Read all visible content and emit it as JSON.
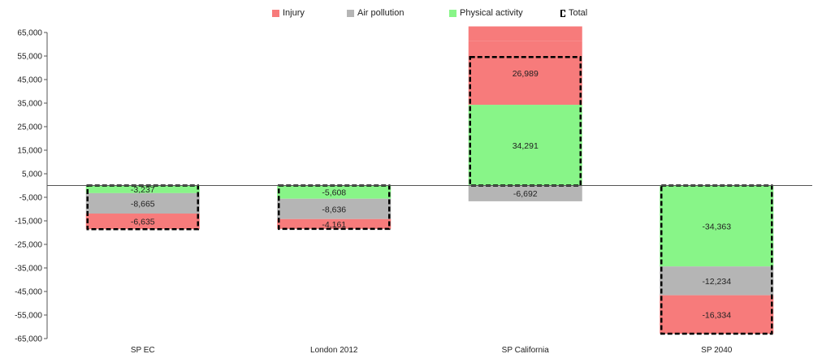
{
  "chart_data": {
    "type": "bar",
    "stacked": true,
    "categories": [
      "SP EC",
      "London 2012",
      "SP California",
      "SP 2040"
    ],
    "series": [
      {
        "name": "Physical activity",
        "color": "#88f588",
        "values": [
          -3237,
          -5608,
          34291,
          -34363
        ],
        "labels": [
          "-3,237",
          "-5,608",
          "34,291",
          "-34,363"
        ]
      },
      {
        "name": "Air pollution",
        "color": "#b5b5b5",
        "values": [
          -8665,
          -8636,
          -6692,
          -12234
        ],
        "labels": [
          "-8,665",
          "-8,636",
          "-6,692",
          "-12,234"
        ]
      },
      {
        "name": "Injury",
        "color": "#f77b7b",
        "values": [
          -6635,
          -4161,
          26989,
          -16334
        ],
        "labels": [
          "-6,635",
          "-4,161",
          "26,989",
          "-16,334"
        ]
      }
    ],
    "injury_extra": [
      0,
      0,
      6300,
      0
    ],
    "totals": {
      "name": "Total",
      "values": [
        -18537,
        -18405,
        54588,
        -62931
      ]
    },
    "ylim": [
      -65000,
      65000
    ],
    "yticks": [
      65000,
      55000,
      45000,
      35000,
      25000,
      15000,
      5000,
      -5000,
      -15000,
      -25000,
      -35000,
      -45000,
      -55000,
      -65000
    ],
    "ytick_labels": [
      "65,000",
      "55,000",
      "45,000",
      "35,000",
      "25,000",
      "15,000",
      "5,000",
      "-5,000",
      "-15,000",
      "-25,000",
      "-35,000",
      "-45,000",
      "-55,000",
      "-65,000"
    ],
    "legend": {
      "position": "top",
      "items": [
        {
          "label": "Injury",
          "color": "#f77b7b"
        },
        {
          "label": "Air pollution",
          "color": "#b5b5b5"
        },
        {
          "label": "Physical activity",
          "color": "#88f588"
        },
        {
          "label": "Total",
          "color": "#000000"
        }
      ]
    },
    "grid": false,
    "title": "",
    "xlabel": "",
    "ylabel": ""
  }
}
